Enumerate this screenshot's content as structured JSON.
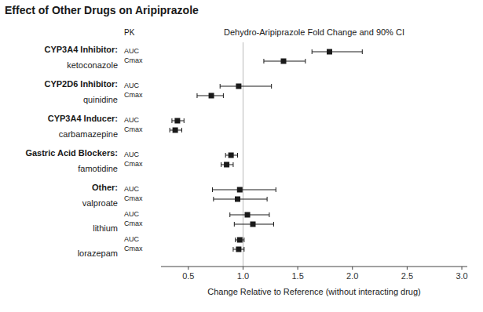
{
  "chart_data": {
    "type": "forest",
    "title": "Effect of Other Drugs on Aripiprazole",
    "subtitle": "Dehydro-Aripiprazole Fold Change and 90% CI",
    "x_label": "Change Relative to Reference (without interacting drug)",
    "column_header": "PK",
    "categories": [
      "ketoconazole",
      "quinidine",
      "carbamazepine",
      "famotidine",
      "valproate",
      "lithium",
      "lorazepam"
    ],
    "group_headers": [
      "CYP3A4 Inhibitor:",
      "CYP2D6 Inhibitor:",
      "CYP3A4 Inducer:",
      "Gastric Acid Blockers:",
      "Other:",
      null,
      null
    ],
    "series": [
      {
        "name": "AUC",
        "marker": "square",
        "values": [
          1.79,
          0.96,
          0.4,
          0.89,
          0.97,
          1.04,
          0.97
        ],
        "ci_low": [
          1.63,
          0.79,
          0.35,
          0.84,
          0.72,
          0.88,
          0.93
        ],
        "ci_high": [
          2.09,
          1.26,
          0.46,
          0.95,
          1.3,
          1.24,
          1.01
        ]
      },
      {
        "name": "Cmax",
        "marker": "square",
        "values": [
          1.37,
          0.71,
          0.38,
          0.85,
          0.95,
          1.09,
          0.96
        ],
        "ci_low": [
          1.19,
          0.58,
          0.33,
          0.8,
          0.73,
          0.92,
          0.91
        ],
        "ci_high": [
          1.57,
          0.82,
          0.44,
          0.91,
          1.22,
          1.28,
          1.01
        ]
      }
    ],
    "xlim": [
      0.25,
      3.05
    ],
    "xticks": [
      0.5,
      {
        "value": 1.0,
        "label": "1.0"
      },
      1.5,
      {
        "value": 2.0,
        "label": "2.0"
      },
      2.5,
      {
        "value": 3.0,
        "label": "3.0"
      }
    ],
    "reference_line": {
      "value": 1.0,
      "color": "#bbbbbb"
    },
    "color": "#1a1a1a"
  }
}
